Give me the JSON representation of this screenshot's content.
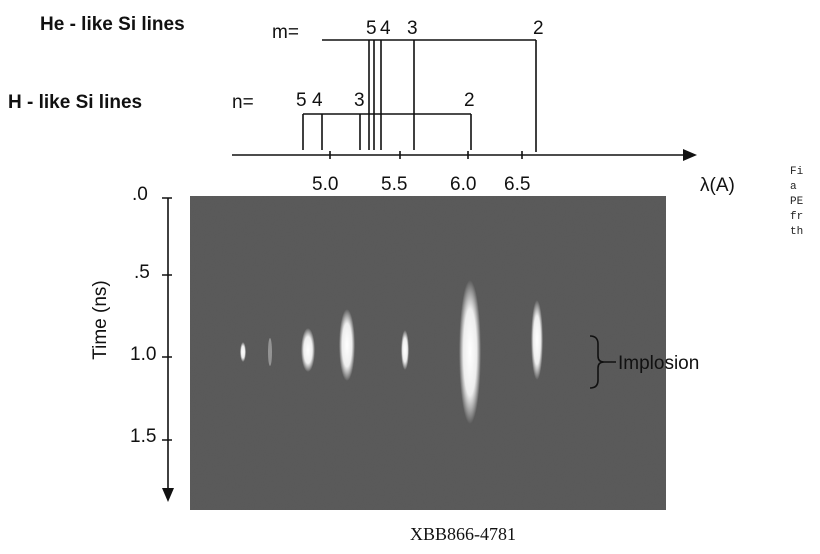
{
  "he_like": {
    "label": "He - like Si lines",
    "prefix": "m=",
    "orders": [
      "5",
      "4",
      "3",
      "2"
    ]
  },
  "h_like": {
    "label": "H - like Si lines",
    "prefix": "n=",
    "orders": [
      "5",
      "4",
      "3",
      "2"
    ]
  },
  "wavelength_axis": {
    "ticks": [
      "5.0",
      "5.5",
      "6.0",
      "6.5"
    ],
    "label": "λ(A)"
  },
  "time_axis": {
    "ticks": [
      ".0",
      ".5",
      "1.0",
      "1.5"
    ],
    "label": "Time (ns)"
  },
  "annotation": "Implosion",
  "image_id": "XBB866-4781",
  "caption_fragment": [
    "Fi",
    "a",
    "PE",
    "fr",
    "th"
  ]
}
